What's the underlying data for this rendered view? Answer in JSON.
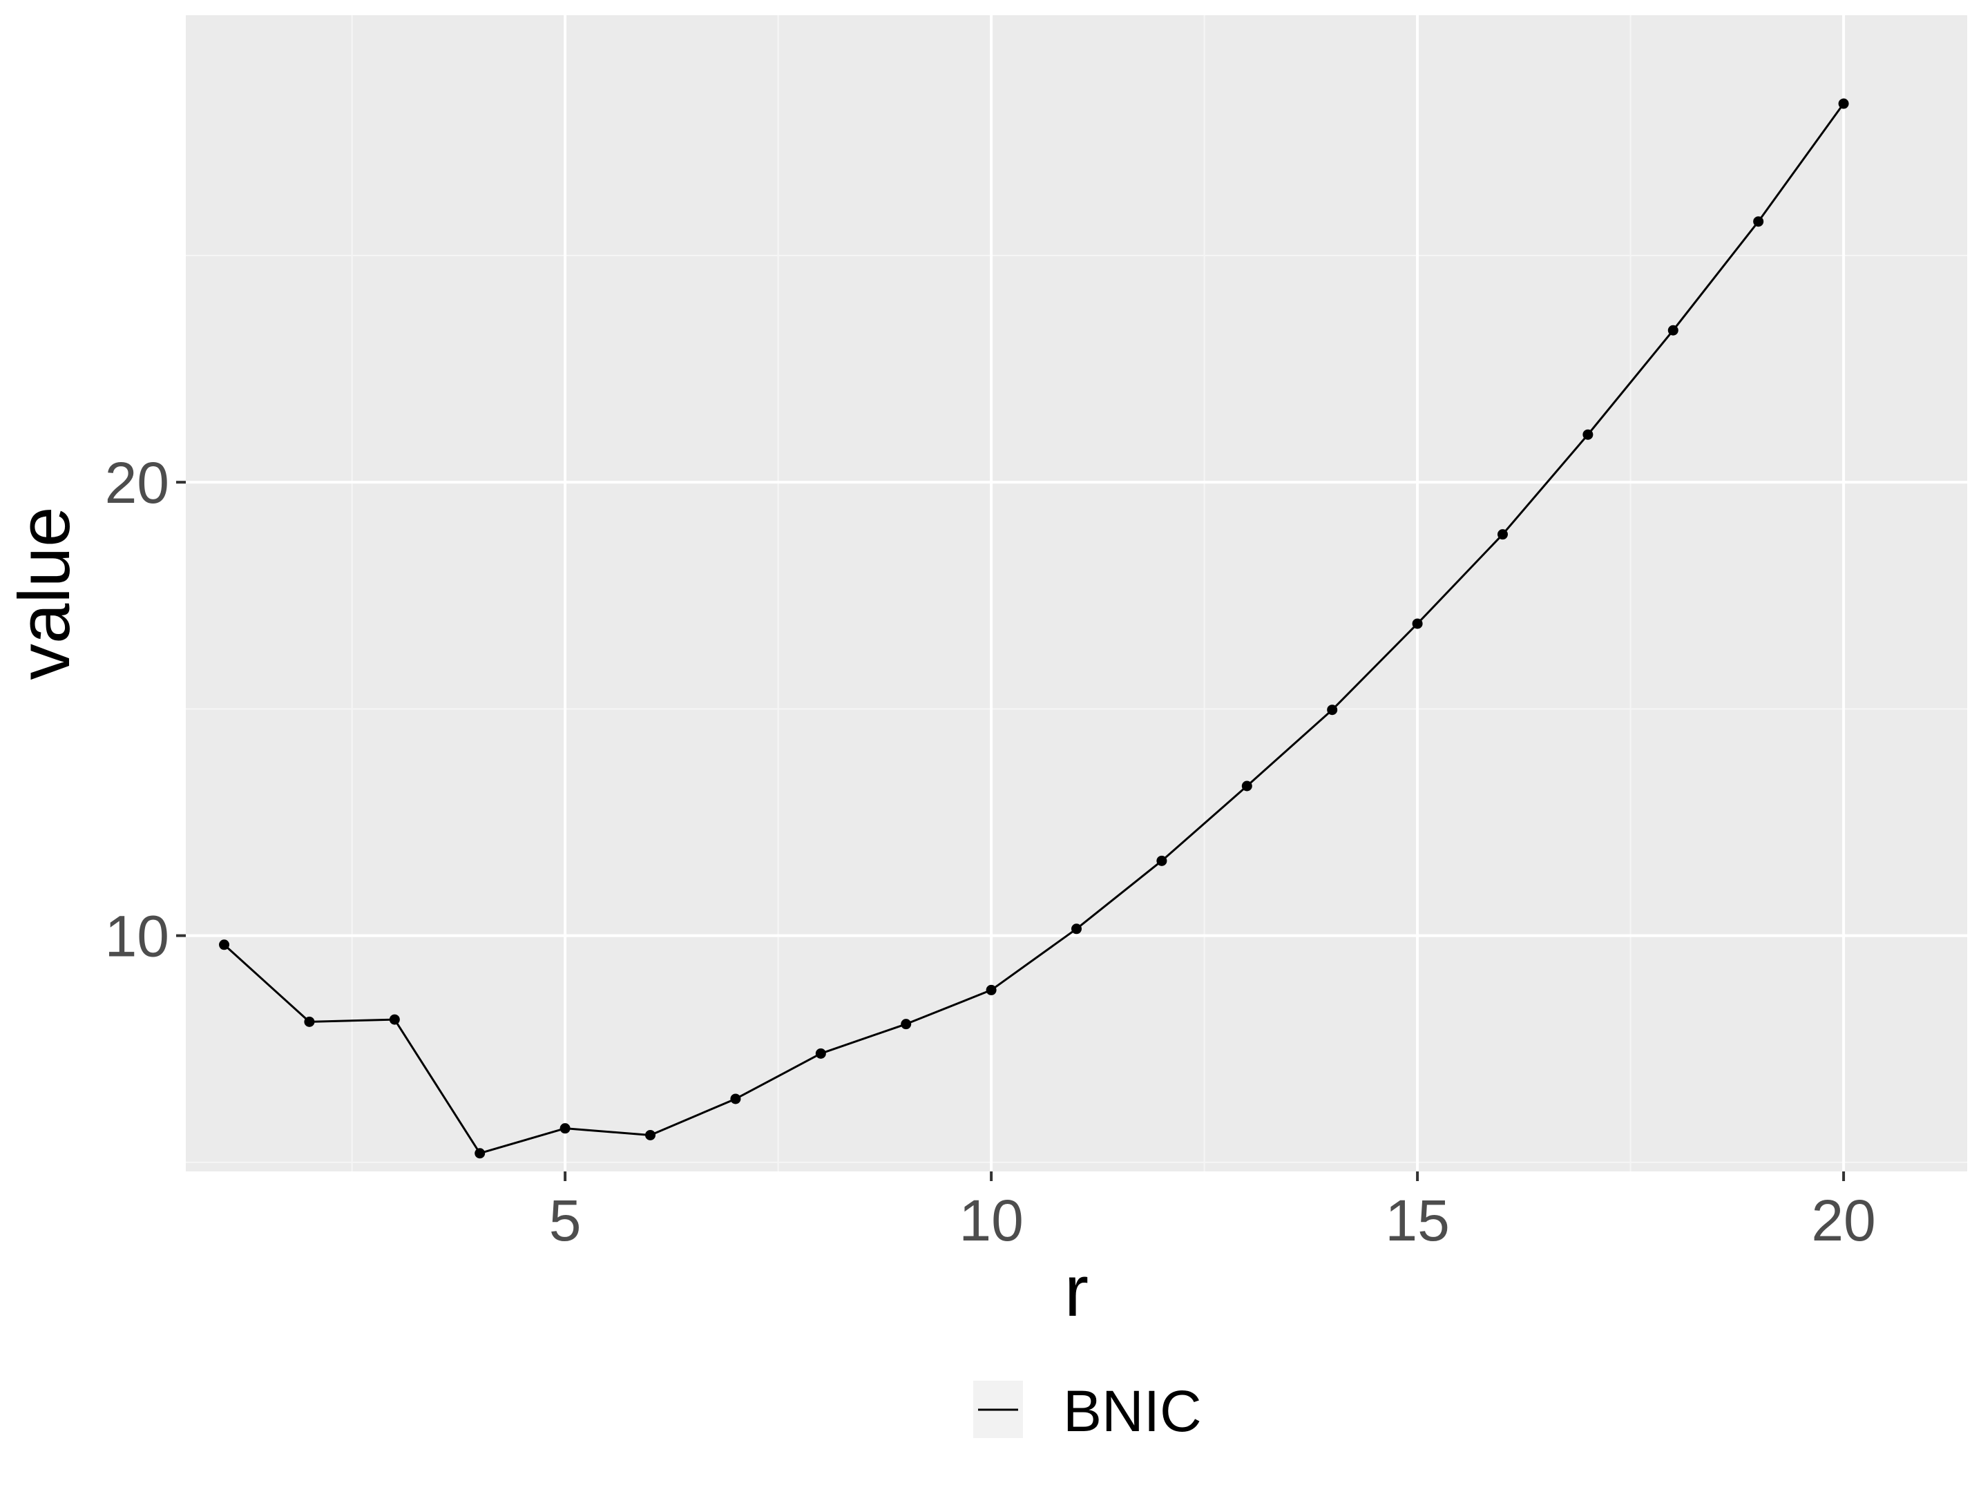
{
  "chart_data": {
    "type": "line",
    "title": "",
    "xlabel": "r",
    "ylabel": "value",
    "xlim": [
      0.55,
      21.45
    ],
    "ylim": [
      4.8,
      30.3
    ],
    "x_ticks": [
      5,
      10,
      15,
      20
    ],
    "x_tick_labels": [
      "5",
      "10",
      "15",
      "20"
    ],
    "y_ticks": [
      10,
      20
    ],
    "y_tick_labels": [
      "10",
      "20"
    ],
    "x_minor_ticks": [
      2.5,
      7.5,
      12.5,
      17.5
    ],
    "y_minor_ticks": [
      5,
      15,
      25
    ],
    "grid": true,
    "legend_position": "bottom",
    "series": [
      {
        "name": "BNIC",
        "color": "#000000",
        "x": [
          1,
          2,
          3,
          4,
          5,
          6,
          7,
          8,
          9,
          10,
          11,
          12,
          13,
          14,
          15,
          16,
          17,
          18,
          19,
          20
        ],
        "y": [
          9.8,
          8.1,
          8.15,
          5.2,
          5.75,
          5.6,
          6.4,
          7.4,
          8.05,
          8.8,
          10.15,
          11.65,
          13.3,
          14.98,
          16.88,
          18.85,
          21.05,
          23.35,
          25.75,
          28.35
        ]
      }
    ],
    "colors": {
      "panel_background": "#ebebeb",
      "major_grid": "#ffffff",
      "minor_grid": "#f5f5f5",
      "tick_text": "#4d4d4d",
      "legend_key_background": "#f2f2f2"
    }
  }
}
